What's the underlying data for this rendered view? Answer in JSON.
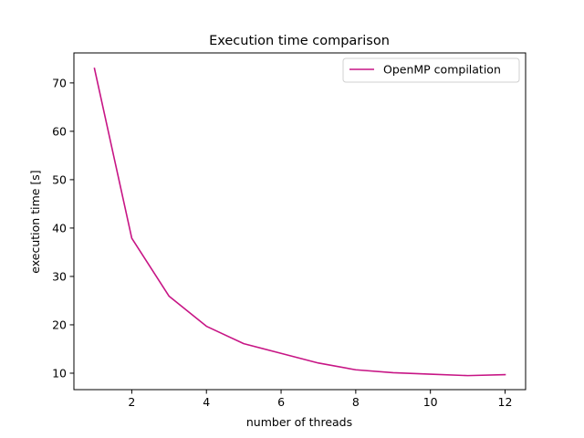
{
  "chart_data": {
    "type": "line",
    "title": "Execution time comparison",
    "xlabel": "number of threads",
    "ylabel": "execution time [s]",
    "xlim": [
      0.45,
      12.55
    ],
    "ylim": [
      6.6,
      76.2
    ],
    "xticks": [
      2,
      4,
      6,
      8,
      10,
      12
    ],
    "yticks": [
      10,
      20,
      30,
      40,
      50,
      60,
      70
    ],
    "grid": false,
    "legend_position": "top-right",
    "series": [
      {
        "name": "OpenMP compilation",
        "color": "#c71585",
        "x": [
          1,
          2,
          3,
          4,
          5,
          6,
          7,
          8,
          9,
          10,
          11,
          12
        ],
        "y": [
          73.0,
          37.9,
          25.9,
          19.7,
          16.1,
          14.1,
          12.1,
          10.7,
          10.1,
          9.8,
          9.5,
          9.7
        ]
      }
    ]
  }
}
